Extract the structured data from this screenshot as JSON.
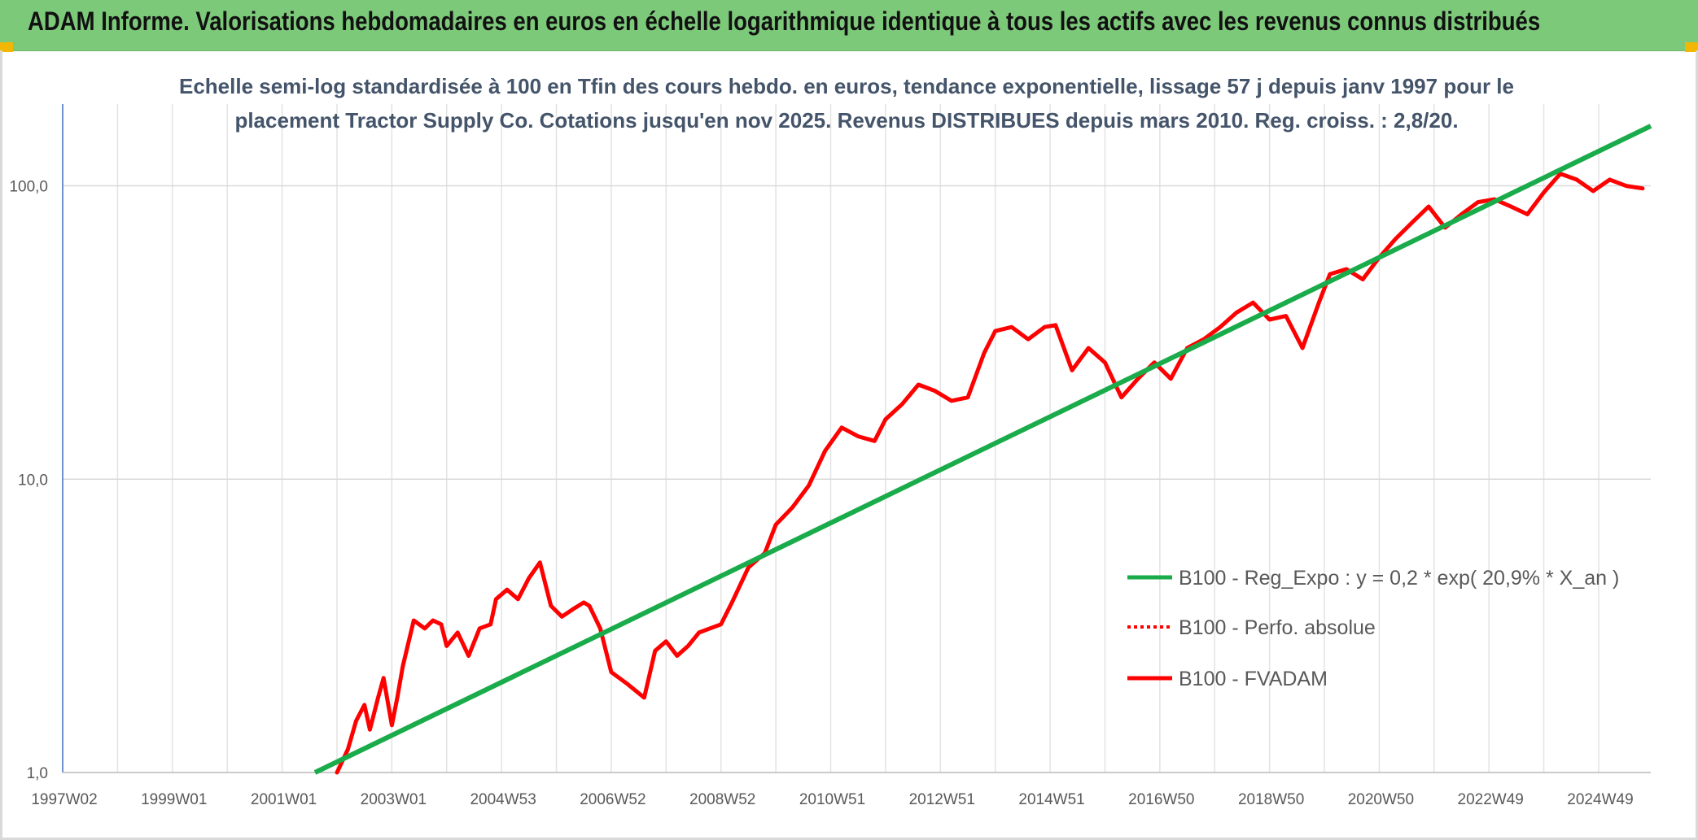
{
  "header": {
    "title": "ADAM Informe. Valorisations hebdomadaires en euros en échelle logarithmique identique à tous les actifs avec les revenus connus distribués"
  },
  "colors": {
    "banner": "#7dc97a",
    "trend": "#1aab4b",
    "fvadam": "#ff0000",
    "grid": "#d9d9d9",
    "accent": "#f2b705"
  },
  "chart_data": {
    "type": "line",
    "title_line1": "Echelle semi-log standardisée à 100 en Tfin des cours hebdo. en euros, tendance exponentielle, lissage 57 j depuis janv 1997 pour le",
    "title_line2": "placement Tractor Supply Co. Cotations jusqu'en nov 2025. Revenus DISTRIBUES depuis mars 2010. Reg. croiss. : 2,8/20.",
    "y_scale": "log",
    "ylim": [
      1,
      190
    ],
    "xlim": [
      1997.0,
      2025.95
    ],
    "y_ticks": [
      {
        "value": 1,
        "label": "1,0"
      },
      {
        "value": 10,
        "label": "10,0"
      },
      {
        "value": 100,
        "label": "100,0"
      }
    ],
    "x_ticks": [
      {
        "value": 1997.0,
        "label": "1997W02"
      },
      {
        "value": 1999.0,
        "label": "1999W01"
      },
      {
        "value": 2001.0,
        "label": "2001W01"
      },
      {
        "value": 2003.0,
        "label": "2003W01"
      },
      {
        "value": 2005.0,
        "label": "2004W53"
      },
      {
        "value": 2007.0,
        "label": "2006W52"
      },
      {
        "value": 2009.0,
        "label": "2008W52"
      },
      {
        "value": 2011.0,
        "label": "2010W51"
      },
      {
        "value": 2013.0,
        "label": "2012W51"
      },
      {
        "value": 2015.0,
        "label": "2014W51"
      },
      {
        "value": 2017.0,
        "label": "2016W50"
      },
      {
        "value": 2019.0,
        "label": "2018W50"
      },
      {
        "value": 2021.0,
        "label": "2020W50"
      },
      {
        "value": 2023.0,
        "label": "2022W49"
      },
      {
        "value": 2025.0,
        "label": "2024W49"
      }
    ],
    "legend_position": "right",
    "series": [
      {
        "name": "B100 - Reg_Expo : y = 0,2 * exp( 20,9% *  X_an )",
        "style": "solid",
        "color": "#1aab4b",
        "x": [
          2001.6,
          2025.95
        ],
        "y": [
          1.0,
          160
        ]
      },
      {
        "name": "B100 - Perfo. absolue",
        "style": "dotted",
        "color": "#ff0000",
        "x": [],
        "y": []
      },
      {
        "name": "B100 - FVADAM",
        "style": "solid",
        "color": "#ff0000",
        "x": [
          2002.0,
          2002.2,
          2002.35,
          2002.5,
          2002.6,
          2002.75,
          2002.85,
          2003.0,
          2003.1,
          2003.2,
          2003.4,
          2003.6,
          2003.75,
          2003.9,
          2004.0,
          2004.2,
          2004.4,
          2004.6,
          2004.8,
          2004.9,
          2005.1,
          2005.3,
          2005.5,
          2005.7,
          2005.9,
          2006.1,
          2006.3,
          2006.5,
          2006.6,
          2006.8,
          2007.0,
          2007.3,
          2007.6,
          2007.8,
          2008.0,
          2008.2,
          2008.4,
          2008.6,
          2008.8,
          2009.0,
          2009.2,
          2009.5,
          2009.8,
          2010.0,
          2010.3,
          2010.6,
          2010.9,
          2011.2,
          2011.5,
          2011.8,
          2012.0,
          2012.3,
          2012.6,
          2012.9,
          2013.2,
          2013.5,
          2013.8,
          2014.0,
          2014.3,
          2014.6,
          2014.9,
          2015.1,
          2015.4,
          2015.7,
          2016.0,
          2016.3,
          2016.6,
          2016.9,
          2017.2,
          2017.5,
          2017.8,
          2018.1,
          2018.4,
          2018.7,
          2019.0,
          2019.3,
          2019.6,
          2019.9,
          2020.1,
          2020.4,
          2020.7,
          2021.0,
          2021.3,
          2021.6,
          2021.9,
          2022.2,
          2022.5,
          2022.8,
          2023.1,
          2023.4,
          2023.7,
          2024.0,
          2024.3,
          2024.6,
          2024.9,
          2025.2,
          2025.5,
          2025.8
        ],
        "y": [
          1.0,
          1.2,
          1.5,
          1.7,
          1.4,
          1.8,
          2.1,
          1.45,
          1.8,
          2.3,
          3.3,
          3.1,
          3.3,
          3.2,
          2.7,
          3.0,
          2.5,
          3.1,
          3.2,
          3.9,
          4.2,
          3.9,
          4.6,
          5.2,
          3.7,
          3.4,
          3.6,
          3.8,
          3.7,
          3.1,
          2.2,
          2.0,
          1.8,
          2.6,
          2.8,
          2.5,
          2.7,
          3.0,
          3.1,
          3.2,
          3.8,
          5.0,
          5.6,
          7.0,
          8.0,
          9.5,
          12.5,
          15.0,
          14.0,
          13.5,
          16.0,
          18.0,
          21.0,
          20.0,
          18.5,
          19.0,
          27.0,
          32.0,
          33.0,
          30.0,
          33.0,
          33.5,
          23.5,
          28.0,
          25.0,
          19.0,
          22.0,
          25.0,
          22.0,
          28.0,
          30.0,
          33.0,
          37.0,
          40.0,
          35.0,
          36.0,
          28.0,
          40.0,
          50.0,
          52.0,
          48.0,
          57.0,
          66.0,
          75.0,
          85.0,
          72.0,
          80.0,
          88.0,
          90.0,
          85.0,
          80.0,
          95.0,
          110.0,
          105.0,
          96.0,
          105.0,
          100.0,
          98.0
        ]
      }
    ]
  }
}
